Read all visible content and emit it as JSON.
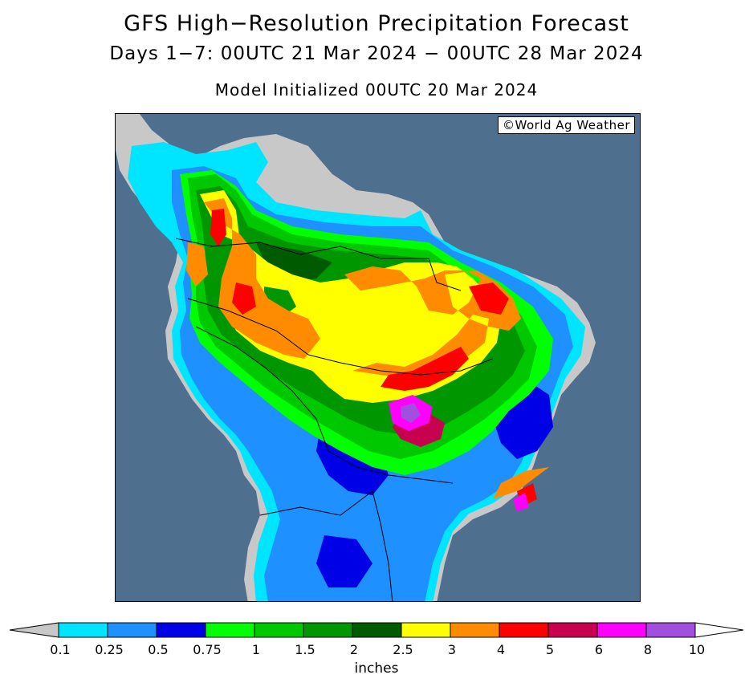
{
  "header": {
    "title": "GFS High−Resolution Precipitation Forecast",
    "subtitle": "Days 1−7: 00UTC 21 Mar 2024 − 00UTC 28 Mar 2024",
    "init": "Model Initialized 00UTC 20 Mar 2024"
  },
  "map": {
    "credit": "©World Ag Weather",
    "ocean_color": "#4f6f8f",
    "land_nodata_color": "#c8c8c8"
  },
  "legend": {
    "units": "inches",
    "ticks": [
      "0.1",
      "0.25",
      "0.5",
      "0.75",
      "1",
      "1.5",
      "2",
      "2.5",
      "3",
      "4",
      "5",
      "6",
      "8",
      "10"
    ],
    "colors": [
      "#00e5ff",
      "#1e90ff",
      "#0000e6",
      "#00ff00",
      "#00c800",
      "#009600",
      "#005a00",
      "#ffff00",
      "#ff8c00",
      "#ff0000",
      "#c80050",
      "#ff00ff",
      "#a050dc"
    ],
    "below_color": "#c8c8c8",
    "above_color": "#ffffff"
  }
}
